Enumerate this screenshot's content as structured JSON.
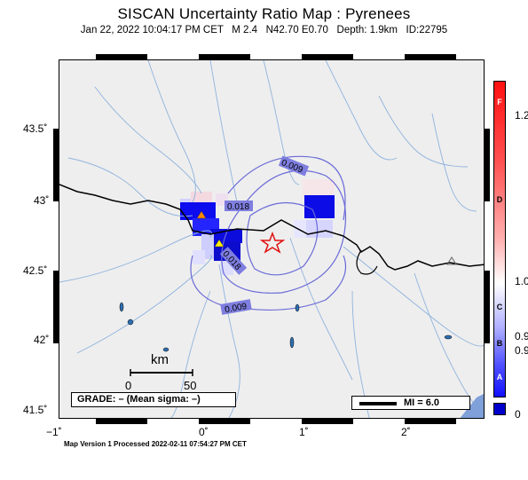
{
  "header": {
    "title": "SISCAN Uncertainty Ratio Map : Pyrenees",
    "subtitle": "Jan 22, 2022 10:04:17 PM CET   M 2.4   N42.70 E0.70   Depth: 1.9km   ID:22795"
  },
  "map": {
    "x_ticks": [
      "−1˚",
      "0˚",
      "1˚",
      "2˚"
    ],
    "y_ticks": [
      "43.5˚",
      "43˚",
      "42.5˚",
      "42˚",
      "41.5˚"
    ],
    "contour_labels": [
      "0.009",
      "0.018",
      "0.018",
      "0.009"
    ],
    "scale_bar": {
      "unit": "km",
      "start": "0",
      "end": "50"
    },
    "grade_text": "GRADE: – (Mean sigma: –)",
    "mi_legend": "MI = 6.0",
    "colors": {
      "background": "#eeeeee",
      "rivers": "#8fb3dd",
      "border": "#000000",
      "star": "#e01010"
    }
  },
  "colorbar": {
    "letters": [
      "F",
      "D",
      "C",
      "B",
      "A"
    ],
    "values": [
      "1.2",
      "1.0",
      "0.9",
      "0.9",
      "0"
    ]
  },
  "footer": {
    "text": "Map Version 1 Processed 2022-02-11 07:54:27 PM CET"
  }
}
